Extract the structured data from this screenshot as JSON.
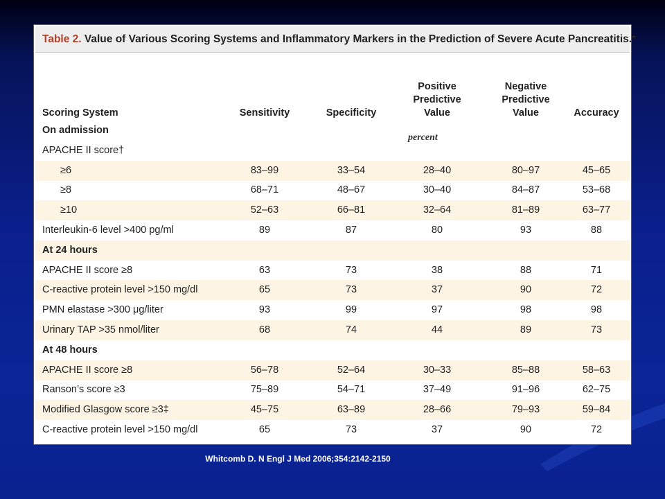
{
  "table": {
    "caption_label": "Table 2.",
    "caption_text": " Value of Various Scoring Systems and Inflammatory Markers in the Prediction of Severe Acute Pancreatitis.*",
    "headers": {
      "system": "Scoring System",
      "sensitivity": "Sensitivity",
      "specificity": "Specificity",
      "ppv_1": "Positive",
      "ppv_2": "Predictive",
      "ppv_3": "Value",
      "npv_1": "Negative",
      "npv_2": "Predictive",
      "npv_3": "Value",
      "accuracy": "Accuracy"
    },
    "unit": "percent",
    "rows": [
      {
        "label": "On admission",
        "section": true,
        "shaded": false,
        "values": [
          "",
          "",
          "",
          "",
          ""
        ]
      },
      {
        "label": "APACHE II score†",
        "section": false,
        "shaded": false,
        "values": [
          "",
          "",
          "",
          "",
          ""
        ]
      },
      {
        "label": "≥6",
        "indent": true,
        "shaded": true,
        "values": [
          "83–99",
          "33–54",
          "28–40",
          "80–97",
          "45–65"
        ]
      },
      {
        "label": "≥8",
        "indent": true,
        "shaded": false,
        "values": [
          "68–71",
          "48–67",
          "30–40",
          "84–87",
          "53–68"
        ]
      },
      {
        "label": "≥10",
        "indent": true,
        "shaded": true,
        "values": [
          "52–63",
          "66–81",
          "32–64",
          "81–89",
          "63–77"
        ]
      },
      {
        "label": "Interleukin-6 level >400 pg/ml",
        "shaded": false,
        "values": [
          "89",
          "87",
          "80",
          "93",
          "88"
        ]
      },
      {
        "label": "At 24 hours",
        "section": true,
        "shaded": true,
        "values": [
          "",
          "",
          "",
          "",
          ""
        ]
      },
      {
        "label": "APACHE II score ≥8",
        "shaded": false,
        "values": [
          "63",
          "73",
          "38",
          "88",
          "71"
        ]
      },
      {
        "label": "C-reactive protein level >150 mg/dl",
        "shaded": true,
        "values": [
          "65",
          "73",
          "37",
          "90",
          "72"
        ]
      },
      {
        "label": "PMN elastase >300 μg/liter",
        "shaded": false,
        "values": [
          "93",
          "99",
          "97",
          "98",
          "98"
        ]
      },
      {
        "label": "Urinary TAP >35 nmol/liter",
        "shaded": true,
        "values": [
          "68",
          "74",
          "44",
          "89",
          "73"
        ]
      },
      {
        "label": "At 48 hours",
        "section": true,
        "shaded": false,
        "values": [
          "",
          "",
          "",
          "",
          ""
        ]
      },
      {
        "label": "APACHE II score ≥8",
        "shaded": true,
        "values": [
          "56–78",
          "52–64",
          "30–33",
          "85–88",
          "58–63"
        ]
      },
      {
        "label": "Ranson’s score ≥3",
        "shaded": false,
        "values": [
          "75–89",
          "54–71",
          "37–49",
          "91–96",
          "62–75"
        ]
      },
      {
        "label": "Modified Glasgow score ≥3‡",
        "shaded": true,
        "values": [
          "45–75",
          "63–89",
          "28–66",
          "79–93",
          "59–84"
        ]
      },
      {
        "label": "C-reactive protein level >150 mg/dl",
        "shaded": false,
        "values": [
          "65",
          "73",
          "37",
          "90",
          "72"
        ]
      }
    ]
  },
  "citation": "Whitcomb D. N Engl J Med 2006;354:2142-2150",
  "colors": {
    "background_top": "#000012",
    "background_main": "#0a1f8c",
    "caption_label": "#b2402a",
    "row_shade": "#fdf4e3"
  }
}
